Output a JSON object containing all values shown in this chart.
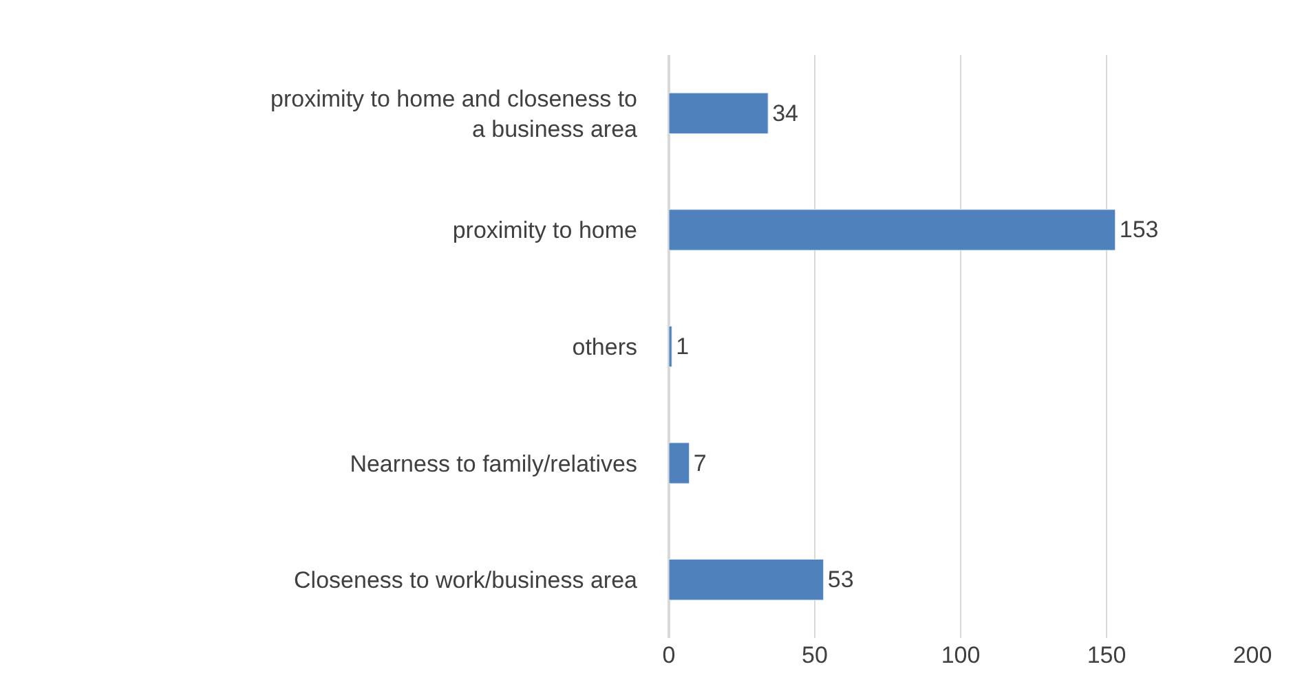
{
  "chart_data": {
    "type": "bar",
    "orientation": "horizontal",
    "categories": [
      "proximity to home and closeness to a business area",
      "proximity to home",
      "others",
      "Nearness to family/relatives",
      "Closeness to work/business area"
    ],
    "values": [
      34,
      153,
      1,
      7,
      53
    ],
    "color": "#4f81bd",
    "xlim": [
      0,
      200
    ],
    "xticks": [
      0,
      50,
      100,
      150,
      200
    ],
    "grid": "x",
    "data_labels": true
  }
}
